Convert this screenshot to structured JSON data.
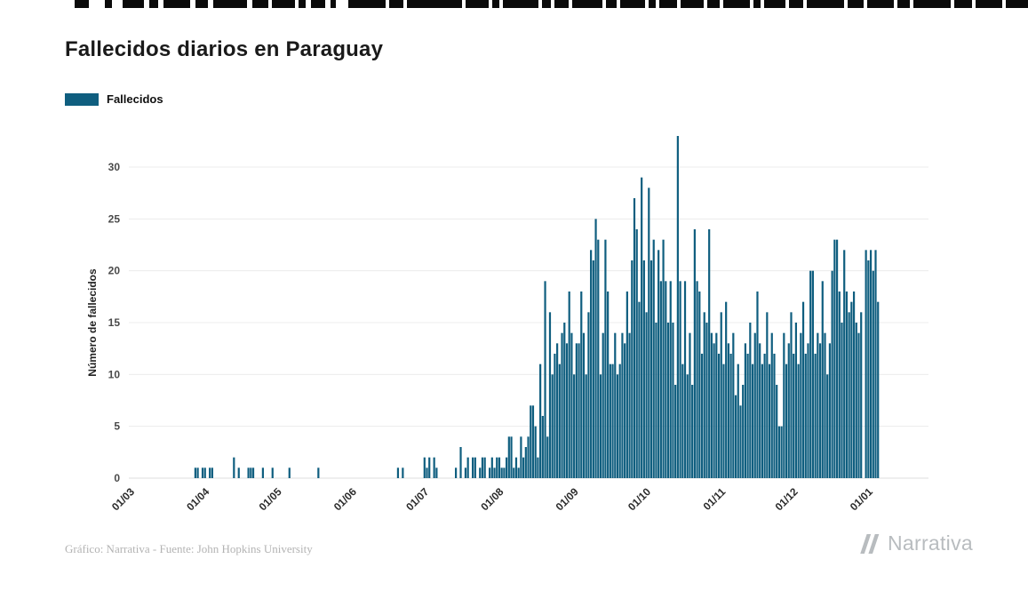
{
  "page": {
    "title": "Fallecidos diarios en Paraguay",
    "footer_credit": "Gráfico: Narrativa - Fuente: John Hopkins University",
    "brand": {
      "name": "Narrativa",
      "color": "#b8bcbf"
    }
  },
  "legend": {
    "label": "Fallecidos",
    "color": "#0F5E7F"
  },
  "chart_data": {
    "type": "bar",
    "title": "Fallecidos diarios en Paraguay",
    "series_name": "Fallecidos",
    "xlabel": "",
    "ylabel": "Número de fallecidos",
    "ylim": [
      0,
      33
    ],
    "yticks": [
      0,
      5,
      10,
      15,
      20,
      25,
      30
    ],
    "xtick_labels": [
      "01/03",
      "01/04",
      "01/05",
      "01/06",
      "01/07",
      "01/08",
      "01/09",
      "01/10",
      "01/11",
      "01/12",
      "01/01"
    ],
    "bar_color": "#0F5E7F",
    "grid": true,
    "legend_position": "top-left",
    "x_unit": "day",
    "months": [
      {
        "label": "01/03",
        "values": [
          0,
          0,
          0,
          0,
          0,
          0,
          0,
          0,
          0,
          0,
          0,
          0,
          0,
          0,
          0,
          0,
          0,
          0,
          0,
          0,
          0,
          0,
          0,
          0,
          0,
          1,
          1,
          0,
          1,
          1,
          0
        ]
      },
      {
        "label": "01/04",
        "values": [
          1,
          1,
          0,
          0,
          0,
          0,
          0,
          0,
          0,
          0,
          2,
          0,
          1,
          0,
          0,
          0,
          1,
          1,
          1,
          0,
          0,
          0,
          1,
          0,
          0,
          0,
          1,
          0,
          0,
          0
        ]
      },
      {
        "label": "01/05",
        "values": [
          0,
          0,
          0,
          1,
          0,
          0,
          0,
          0,
          0,
          0,
          0,
          0,
          0,
          0,
          0,
          1,
          0,
          0,
          0,
          0,
          0,
          0,
          0,
          0,
          0,
          0,
          0,
          0,
          0,
          0,
          0
        ]
      },
      {
        "label": "01/06",
        "values": [
          0,
          0,
          0,
          0,
          0,
          0,
          0,
          0,
          0,
          0,
          0,
          0,
          0,
          0,
          0,
          0,
          0,
          1,
          0,
          1,
          0,
          0,
          0,
          0,
          0,
          0,
          0,
          0,
          2,
          1
        ]
      },
      {
        "label": "01/07",
        "values": [
          2,
          0,
          2,
          1,
          0,
          0,
          0,
          0,
          0,
          0,
          0,
          1,
          0,
          3,
          0,
          1,
          2,
          0,
          2,
          2,
          0,
          1,
          2,
          2,
          0,
          1,
          2,
          1,
          2,
          2,
          1
        ]
      },
      {
        "label": "01/08",
        "values": [
          1,
          2,
          4,
          4,
          1,
          2,
          1,
          4,
          2,
          3,
          4,
          7,
          7,
          5,
          2,
          11,
          6,
          19,
          4,
          16,
          10,
          12,
          13,
          11,
          14,
          15,
          13,
          18,
          14,
          10,
          13
        ]
      },
      {
        "label": "01/09",
        "values": [
          13,
          18,
          14,
          10,
          16,
          22,
          21,
          25,
          23,
          10,
          14,
          23,
          18,
          11,
          11,
          14,
          10,
          11,
          14,
          13,
          18,
          14,
          21,
          27,
          24,
          17,
          29,
          21,
          16,
          28
        ]
      },
      {
        "label": "01/10",
        "values": [
          21,
          23,
          15,
          22,
          19,
          23,
          19,
          15,
          19,
          15,
          9,
          33,
          19,
          11,
          19,
          10,
          14,
          9,
          24,
          19,
          18,
          12,
          16,
          15,
          24,
          14,
          13,
          14,
          12,
          16,
          11
        ]
      },
      {
        "label": "01/11",
        "values": [
          17,
          13,
          12,
          14,
          8,
          11,
          7,
          9,
          13,
          12,
          15,
          11,
          14,
          18,
          13,
          11,
          12,
          16,
          11,
          14,
          12,
          9,
          5,
          5,
          14,
          11,
          13,
          16,
          12,
          15
        ]
      },
      {
        "label": "01/12",
        "values": [
          11,
          14,
          17,
          12,
          13,
          20,
          20,
          12,
          14,
          13,
          19,
          14,
          10,
          13,
          20,
          23,
          23,
          18,
          15,
          22,
          18,
          16,
          17,
          18,
          15,
          14,
          16,
          0,
          22,
          21,
          22
        ]
      },
      {
        "label": "01/01",
        "values": [
          20,
          22,
          17
        ]
      }
    ]
  },
  "top_strip": {
    "color": "#0a0a0a",
    "height": 9,
    "segments": [
      [
        84,
        16
      ],
      [
        118,
        8
      ],
      [
        138,
        24
      ],
      [
        168,
        10
      ],
      [
        184,
        30
      ],
      [
        220,
        14
      ],
      [
        240,
        38
      ],
      [
        284,
        18
      ],
      [
        306,
        26
      ],
      [
        336,
        8
      ],
      [
        350,
        16
      ],
      [
        372,
        6
      ],
      [
        392,
        42
      ],
      [
        438,
        16
      ],
      [
        458,
        62
      ],
      [
        524,
        26
      ],
      [
        554,
        8
      ],
      [
        566,
        40
      ],
      [
        610,
        10
      ],
      [
        624,
        16
      ],
      [
        644,
        34
      ],
      [
        682,
        12
      ],
      [
        698,
        28
      ],
      [
        730,
        8
      ],
      [
        742,
        20
      ],
      [
        766,
        26
      ],
      [
        796,
        14
      ],
      [
        814,
        30
      ],
      [
        848,
        8
      ],
      [
        860,
        24
      ],
      [
        888,
        16
      ],
      [
        908,
        42
      ],
      [
        954,
        18
      ],
      [
        976,
        30
      ],
      [
        1010,
        14
      ],
      [
        1028,
        42
      ],
      [
        1074,
        20
      ],
      [
        1098,
        30
      ],
      [
        1132,
        25
      ]
    ]
  }
}
